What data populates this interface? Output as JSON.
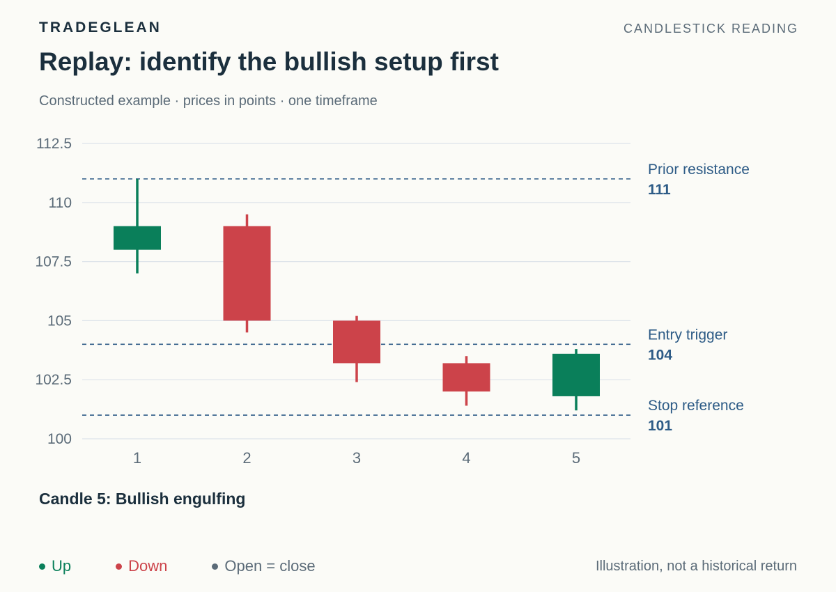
{
  "header": {
    "brand": "TRADEGLEAN",
    "tagline": "CANDLESTICK READING",
    "title": "Replay: identify the bullish setup first",
    "subtitle": "Constructed example · prices in points · one timeframe"
  },
  "chart_data": {
    "type": "candlestick",
    "categories": [
      "1",
      "2",
      "3",
      "4",
      "5"
    ],
    "ylim": [
      100,
      112.5
    ],
    "yticks": [
      100,
      102.5,
      105,
      107.5,
      110,
      112.5
    ],
    "ytick_labels": [
      "100",
      "102.5",
      "105",
      "107.5",
      "110",
      "112.5"
    ],
    "grid": true,
    "candles": [
      {
        "x": "1",
        "open": 108,
        "high": 111,
        "low": 107,
        "close": 109,
        "direction": "up"
      },
      {
        "x": "2",
        "open": 109,
        "high": 109.5,
        "low": 104.5,
        "close": 105,
        "direction": "down"
      },
      {
        "x": "3",
        "open": 105,
        "high": 105.2,
        "low": 102.4,
        "close": 103.2,
        "direction": "down"
      },
      {
        "x": "4",
        "open": 103.2,
        "high": 103.5,
        "low": 101.4,
        "close": 102,
        "direction": "down"
      },
      {
        "x": "5",
        "open": 101.8,
        "high": 103.8,
        "low": 101.2,
        "close": 103.6,
        "direction": "up"
      }
    ],
    "reference_lines": [
      {
        "label": "Prior resistance",
        "value": 111,
        "value_label": "111"
      },
      {
        "label": "Entry trigger",
        "value": 104,
        "value_label": "104"
      },
      {
        "label": "Stop reference",
        "value": 101,
        "value_label": "101"
      }
    ],
    "colors": {
      "up": "#0a7f5a",
      "down": "#cc434a",
      "neutral": "#5b6b78",
      "reference": "#2d5b86",
      "grid": "#dde3ea"
    }
  },
  "annotation": {
    "pattern": "Candle 5: Bullish engulfing"
  },
  "legend": {
    "items": [
      {
        "label": "Up",
        "color": "#0a7f5a"
      },
      {
        "label": "Down",
        "color": "#cc434a"
      },
      {
        "label": "Open = close",
        "color": "#5b6b78"
      }
    ],
    "position": "bottom-left"
  },
  "footnote": "Illustration, not a historical return"
}
